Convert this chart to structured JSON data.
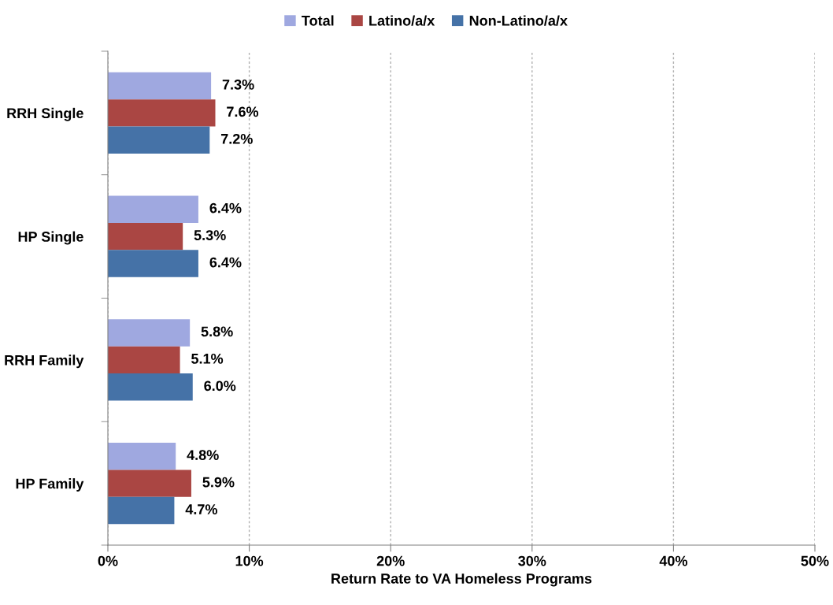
{
  "chart_data": {
    "type": "bar",
    "orientation": "horizontal",
    "xlabel": "Return Rate to VA Homeless Programs",
    "categories": [
      "RRH Single",
      "HP Single",
      "RRH Family",
      "HP Family"
    ],
    "series": [
      {
        "name": "Total",
        "color": "#9fa8e0",
        "values": [
          7.3,
          6.4,
          5.8,
          4.8
        ],
        "value_labels": [
          "7.3%",
          "6.4%",
          "5.8%",
          "4.8%"
        ]
      },
      {
        "name": "Latino/a/x",
        "color": "#aa4643",
        "values": [
          7.6,
          5.3,
          5.1,
          5.9
        ],
        "value_labels": [
          "7.6%",
          "5.3%",
          "5.1%",
          "5.9%"
        ]
      },
      {
        "name": "Non-Latino/a/x",
        "color": "#4572a7",
        "values": [
          7.2,
          6.4,
          6.0,
          4.7
        ],
        "value_labels": [
          "7.2%",
          "6.4%",
          "6.0%",
          "4.7%"
        ]
      }
    ],
    "xlim": [
      0,
      50
    ],
    "xticks": [
      {
        "value": 0,
        "label": "0%"
      },
      {
        "value": 10,
        "label": "10%"
      },
      {
        "value": 20,
        "label": "20%"
      },
      {
        "value": 30,
        "label": "30%"
      },
      {
        "value": 40,
        "label": "40%"
      },
      {
        "value": 50,
        "label": "50%"
      }
    ],
    "grid": "x",
    "legend": "top"
  }
}
